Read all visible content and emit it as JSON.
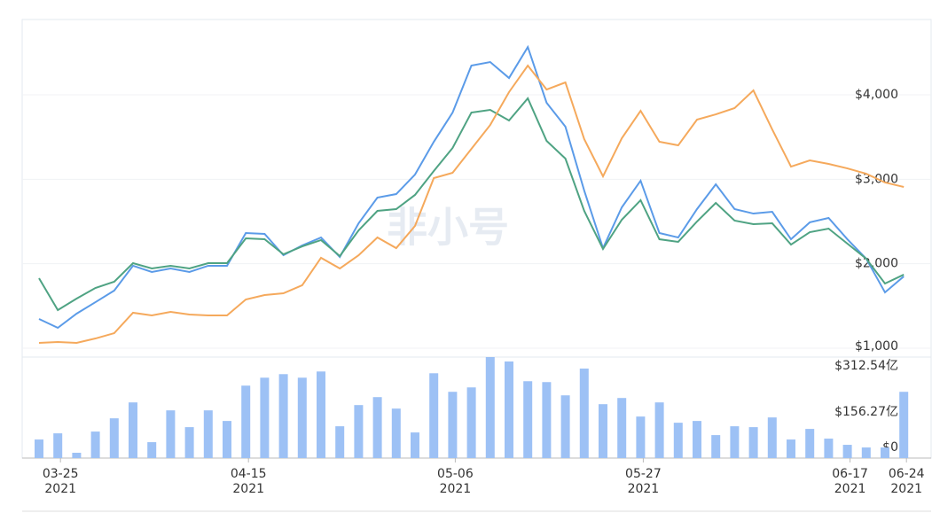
{
  "chart_data": [
    {
      "type": "line",
      "watermark": "非小号",
      "categories": [
        null,
        "03-25",
        null,
        null,
        null,
        null,
        null,
        null,
        null,
        null,
        null,
        "04-15",
        null,
        null,
        null,
        null,
        null,
        null,
        null,
        null,
        null,
        null,
        "05-06",
        null,
        null,
        null,
        null,
        null,
        null,
        null,
        null,
        null,
        "05-27",
        null,
        null,
        null,
        null,
        null,
        null,
        null,
        null,
        null,
        null,
        "06-17",
        null,
        null,
        "06-24"
      ],
      "category_years": [
        null,
        "2021",
        null,
        null,
        null,
        null,
        null,
        null,
        null,
        null,
        null,
        "2021",
        null,
        null,
        null,
        null,
        null,
        null,
        null,
        null,
        null,
        null,
        "2021",
        null,
        null,
        null,
        null,
        null,
        null,
        null,
        null,
        null,
        "2021",
        null,
        null,
        null,
        null,
        null,
        null,
        null,
        null,
        null,
        null,
        "2021",
        null,
        null,
        "2021"
      ],
      "series": [
        {
          "color": "#5b9be8",
          "values": [
            1346,
            1241,
            1409,
            1545,
            1682,
            1976,
            1902,
            1944,
            1902,
            1976,
            1976,
            2364,
            2353,
            2101,
            2217,
            2311,
            2080,
            2479,
            2783,
            2825,
            3056,
            3444,
            3790,
            4346,
            4388,
            4199,
            4566,
            3906,
            3623,
            2867,
            2185,
            2668,
            2983,
            2364,
            2311,
            2647,
            2941,
            2647,
            2594,
            2615,
            2290,
            2490,
            2542,
            2290,
            2060,
            1661,
            1850
          ]
        },
        {
          "color": "#4fa383",
          "values": [
            1829,
            1451,
            1587,
            1713,
            1787,
            2007,
            1944,
            1976,
            1944,
            2007,
            2007,
            2301,
            2290,
            2112,
            2206,
            2280,
            2091,
            2395,
            2626,
            2647,
            2815,
            3098,
            3371,
            3790,
            3822,
            3696,
            3958,
            3455,
            3245,
            2626,
            2175,
            2521,
            2752,
            2290,
            2259,
            2500,
            2720,
            2511,
            2469,
            2479,
            2227,
            2374,
            2416,
            2238,
            2060,
            1766,
            1871
          ]
        },
        {
          "color": "#f5a95c",
          "values": [
            1063,
            1073,
            1063,
            1115,
            1178,
            1420,
            1388,
            1430,
            1399,
            1388,
            1388,
            1577,
            1629,
            1650,
            1745,
            2070,
            1944,
            2101,
            2311,
            2185,
            2448,
            3014,
            3077,
            3360,
            3643,
            4032,
            4346,
            4063,
            4147,
            3476,
            3035,
            3486,
            3811,
            3444,
            3402,
            3706,
            3769,
            3843,
            4052,
            3591,
            3150,
            3224,
            3182,
            3129,
            3066,
            2962,
            2909
          ]
        }
      ],
      "ylim": [
        895,
        4892
      ],
      "yticks": [
        {
          "value": 1000,
          "label": "$1,000"
        },
        {
          "value": 2000,
          "label": "$2,000"
        },
        {
          "value": 3000,
          "label": "$3,000"
        },
        {
          "value": 4000,
          "label": "$4,000"
        }
      ],
      "grid": true
    },
    {
      "type": "bar",
      "color": "#9dc1f5",
      "values": [
        63,
        84,
        18,
        90,
        135,
        189,
        54,
        162,
        105,
        162,
        126,
        246,
        273,
        285,
        273,
        294,
        108,
        180,
        207,
        168,
        87,
        288,
        225,
        240,
        343,
        328,
        261,
        258,
        213,
        304,
        183,
        204,
        141,
        189,
        120,
        126,
        78,
        108,
        105,
        138,
        63,
        99,
        66,
        45,
        36,
        36,
        225
      ],
      "ylim": [
        0,
        343
      ],
      "yticks": [
        {
          "value": 0,
          "label": "$0"
        },
        {
          "value": 156.27,
          "label": "$156.27亿"
        },
        {
          "value": 312.54,
          "label": "$312.54亿"
        }
      ]
    }
  ]
}
